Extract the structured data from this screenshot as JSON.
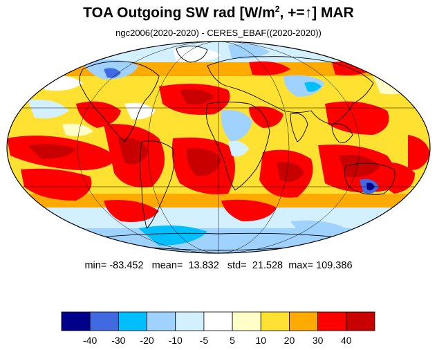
{
  "title": {
    "main": "TOA Outgoing SW rad [W/m",
    "sup": "2",
    "mid": ", +=",
    "arrow": "↑",
    "end": "] MAR"
  },
  "subtitle": "ngc2006(2020-2020) - CERES_EBAF((2020-2020))",
  "stats": {
    "min_label": "min=",
    "min": "-83.452",
    "mean_label": "mean=",
    "mean": "13.832",
    "std_label": "std=",
    "std": "21.528",
    "max_label": "max=",
    "max": "109.386"
  },
  "colorbar": {
    "colors": [
      "#00008b",
      "#4169e1",
      "#00bfff",
      "#a0d2ff",
      "#d2f0ff",
      "#ffffff",
      "#ffffc8",
      "#ffe132",
      "#ffaa00",
      "#ff0000",
      "#c80000"
    ],
    "labels": [
      "-40",
      "-30",
      "-20",
      "-10",
      "-5",
      "5",
      "10",
      "20",
      "30",
      "40"
    ]
  },
  "map": {
    "projection": "mollweide"
  }
}
